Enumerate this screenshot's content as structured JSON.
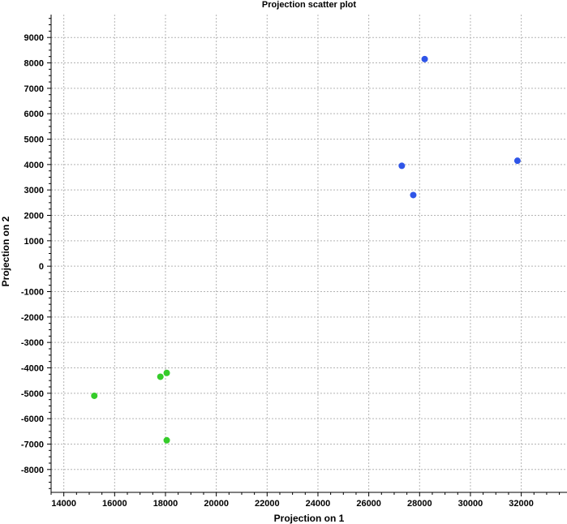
{
  "chart_data": {
    "type": "scatter",
    "title": "Projection scatter plot",
    "xlabel": "Projection on 1",
    "ylabel": "Projection on 2",
    "xlim": [
      13500,
      33800
    ],
    "ylim": [
      -8900,
      9900
    ],
    "x_ticks": [
      14000,
      16000,
      18000,
      20000,
      22000,
      24000,
      26000,
      28000,
      30000,
      32000
    ],
    "y_ticks": [
      9000,
      8000,
      7000,
      6000,
      5000,
      4000,
      3000,
      2000,
      1000,
      0,
      -1000,
      -2000,
      -3000,
      -4000,
      -5000,
      -6000,
      -7000,
      -8000
    ],
    "grid": true,
    "series": [
      {
        "color": "#2f55e8",
        "points": [
          {
            "x": 28200,
            "y": 8150
          },
          {
            "x": 27300,
            "y": 3950
          },
          {
            "x": 27750,
            "y": 2800
          },
          {
            "x": 31850,
            "y": 4150
          }
        ]
      },
      {
        "color": "#35cc2a",
        "points": [
          {
            "x": 15200,
            "y": -5100
          },
          {
            "x": 17800,
            "y": -4350
          },
          {
            "x": 18050,
            "y": -4200
          },
          {
            "x": 18050,
            "y": -6850
          }
        ]
      }
    ]
  }
}
